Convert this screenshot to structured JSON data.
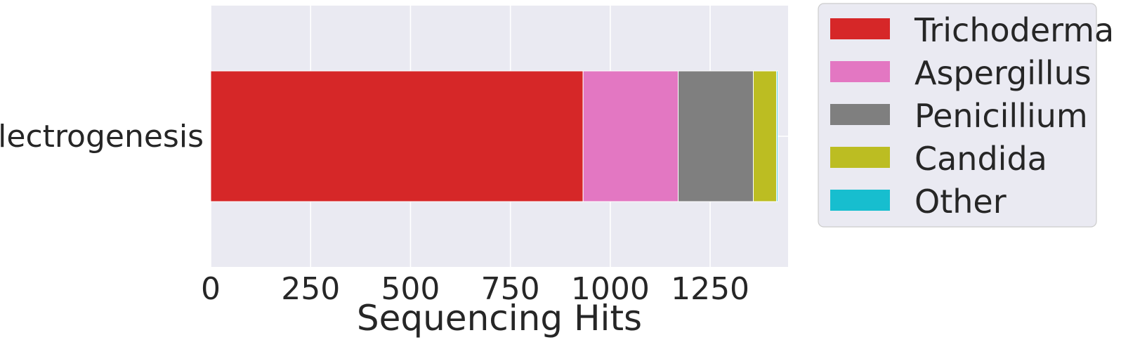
{
  "chart_data": {
    "type": "bar",
    "orientation": "horizontal",
    "stacked": true,
    "categories": [
      "Electrogenesis"
    ],
    "series": [
      {
        "name": "Trichoderma",
        "values": [
          932
        ],
        "color": "#d62728"
      },
      {
        "name": "Aspergillus",
        "values": [
          238
        ],
        "color": "#e377c2"
      },
      {
        "name": "Penicillium",
        "values": [
          188
        ],
        "color": "#7f7f7f"
      },
      {
        "name": "Candida",
        "values": [
          58
        ],
        "color": "#bcbd22"
      },
      {
        "name": "Other",
        "values": [
          3
        ],
        "color": "#17becf"
      }
    ],
    "xlabel": "Sequencing Hits",
    "ylabel": "",
    "xlim": [
      0,
      1445
    ],
    "xticks": [
      0,
      250,
      500,
      750,
      1000,
      1250
    ],
    "grid": true,
    "legend_position": "right",
    "background_color": "#eaeaf2",
    "grid_color": "#ffffff"
  }
}
